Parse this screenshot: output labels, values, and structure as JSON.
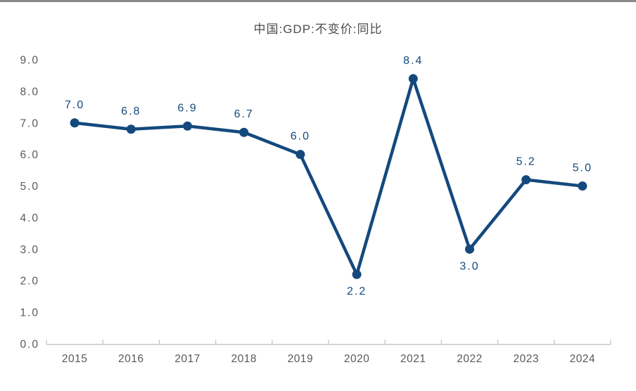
{
  "page": {
    "background_color": "#ffffff",
    "top_rule_color": "#8a8a8a"
  },
  "chart_data": {
    "type": "line",
    "title": "中国:GDP:不变价:同比",
    "categories": [
      "2015",
      "2016",
      "2017",
      "2018",
      "2019",
      "2020",
      "2021",
      "2022",
      "2023",
      "2024"
    ],
    "series": [
      {
        "name": "中国:GDP:不变价:同比",
        "values": [
          7.0,
          6.8,
          6.9,
          6.7,
          6.0,
          2.2,
          8.4,
          3.0,
          5.2,
          5.0
        ]
      }
    ],
    "data_labels": [
      "7.0",
      "6.8",
      "6.9",
      "6.7",
      "6.0",
      "2.2",
      "8.4",
      "3.0",
      "5.2",
      "5.0"
    ],
    "data_label_positions": [
      "above",
      "above",
      "above",
      "above",
      "above",
      "below",
      "above",
      "below",
      "above",
      "above"
    ],
    "xlabel": "",
    "ylabel": "",
    "ylim": [
      0.0,
      9.0
    ],
    "ytick_step": 1.0,
    "ytick_labels": [
      "0.0",
      "1.0",
      "2.0",
      "3.0",
      "4.0",
      "5.0",
      "6.0",
      "7.0",
      "8.0",
      "9.0"
    ],
    "grid": false,
    "legend_position": "none",
    "colors": {
      "line": "#14497d",
      "marker": "#14497d",
      "data_label": "#14497d",
      "axis_line": "#c9c9c9",
      "tick_mark": "#c9c9c9",
      "axis_tick_label": "#595959",
      "title": "#4d4d4d"
    }
  }
}
